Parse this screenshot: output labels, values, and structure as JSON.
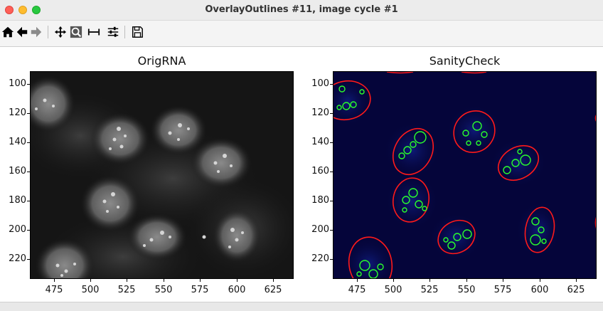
{
  "window": {
    "title": "OverlayOutlines #11, image cycle #1"
  },
  "toolbar": {
    "buttons": [
      {
        "name": "home-button",
        "icon": "home-icon"
      },
      {
        "name": "back-button",
        "icon": "arrow-left-icon"
      },
      {
        "name": "forward-button",
        "icon": "arrow-right-icon"
      },
      {
        "name": "pan-button",
        "icon": "move-icon"
      },
      {
        "name": "zoom-button",
        "icon": "zoom-rect-icon"
      },
      {
        "name": "subplots-button",
        "icon": "subplots-icon"
      },
      {
        "name": "customize-button",
        "icon": "sliders-icon"
      },
      {
        "name": "save-button",
        "icon": "save-icon"
      }
    ]
  },
  "plots": [
    {
      "title": "OrigRNA",
      "yticks": [
        "100",
        "120",
        "140",
        "160",
        "180",
        "200",
        "220"
      ],
      "xticks": [
        "475",
        "500",
        "525",
        "550",
        "575",
        "600",
        "625"
      ]
    },
    {
      "title": "SanityCheck",
      "yticks": [
        "100",
        "120",
        "140",
        "160",
        "180",
        "200",
        "220"
      ],
      "xticks": [
        "475",
        "500",
        "525",
        "550",
        "575",
        "600",
        "625"
      ]
    }
  ],
  "colors": {
    "outline_red": "#ff1a1a",
    "outline_green": "#2bff2b",
    "sanity_bg": "#05053a"
  }
}
